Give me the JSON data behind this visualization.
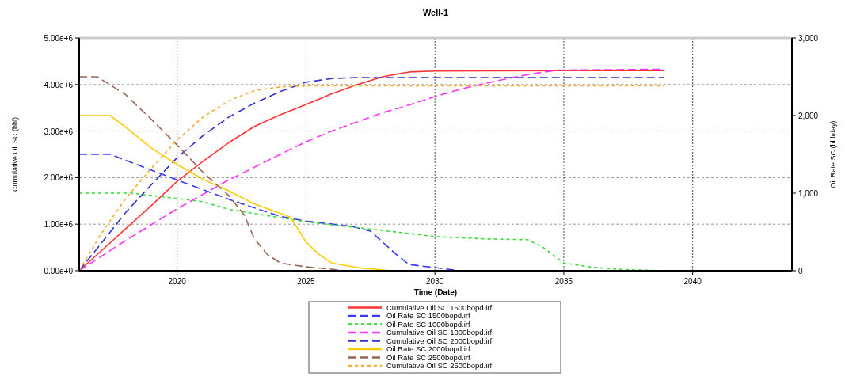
{
  "chart_data": {
    "type": "line",
    "title": "Well-1",
    "xlabel": "Time (Date)",
    "ylabel": "Cumulative Oil SC (bbl)",
    "y2label": "Oil Rate SC (bbl/day)",
    "xlim": [
      2016.2,
      2043.85
    ],
    "xticks": [
      2020,
      2025,
      2030,
      2035,
      2040
    ],
    "ylim": [
      0,
      5000000
    ],
    "yticks": [
      {
        "value": 0,
        "label": "0.00e+0"
      },
      {
        "value": 1000000,
        "label": "1.00e+6"
      },
      {
        "value": 2000000,
        "label": "2.00e+6"
      },
      {
        "value": 3000000,
        "label": "3.00e+6"
      },
      {
        "value": 4000000,
        "label": "4.00e+6"
      },
      {
        "value": 5000000,
        "label": "5.00e+6"
      }
    ],
    "y2lim": [
      0,
      3000
    ],
    "y2ticks": [
      0,
      {
        "value": 1000,
        "label": "1,000"
      },
      {
        "value": 2000,
        "label": "2,000"
      },
      {
        "value": 3000,
        "label": "3,000"
      }
    ],
    "grid": true,
    "legend": "bottom",
    "marker": "none",
    "series": [
      {
        "name": "Cumulative Oil SC 1500bopd.irf",
        "color": "#ff3333",
        "line_style": "solid",
        "x": [
          2016.2,
          2017,
          2018,
          2019,
          2020,
          2021,
          2022,
          2023,
          2024,
          2025,
          2026,
          2027,
          2028,
          2029,
          2030,
          2035,
          2038.9
        ],
        "values": [
          0,
          400000,
          900000,
          1400000,
          1920000,
          2350000,
          2750000,
          3100000,
          3350000,
          3570000,
          3800000,
          4000000,
          4170000,
          4270000,
          4290000,
          4300000,
          4300000
        ]
      },
      {
        "name": "Oil Rate SC 1500bopd.irf",
        "color": "#3a3aff",
        "line_style": "dashed",
        "axis": "y2",
        "x": [
          2016.2,
          2017.4,
          2020,
          2022,
          2024,
          2025,
          2026.8,
          2027.5,
          2028.5,
          2029,
          2030,
          2031
        ],
        "values": [
          1500,
          1500,
          1170,
          920,
          700,
          640,
          570,
          510,
          210,
          80,
          40,
          0
        ]
      },
      {
        "name": "Oil Rate SC 1000bopd.irf",
        "color": "#33dd33",
        "line_style": "dotted",
        "axis": "y2",
        "x": [
          2016.2,
          2018.2,
          2020,
          2021,
          2022,
          2025,
          2029,
          2030,
          2032,
          2033.6,
          2034.2,
          2035,
          2036,
          2037,
          2038.9
        ],
        "values": [
          1000,
          1000,
          930,
          890,
          790,
          630,
          480,
          440,
          410,
          400,
          300,
          100,
          50,
          20,
          0
        ]
      },
      {
        "name": "Cumulative Oil SC 1000bopd.irf",
        "color": "#ff33ff",
        "line_style": "dashed",
        "x": [
          2016.2,
          2018,
          2020,
          2022,
          2024,
          2025,
          2026,
          2027,
          2028,
          2029,
          2030,
          2031,
          2032,
          2033,
          2034,
          2034.8,
          2038.9
        ],
        "values": [
          0,
          650000,
          1330000,
          1950000,
          2500000,
          2770000,
          3000000,
          3200000,
          3400000,
          3560000,
          3740000,
          3900000,
          4030000,
          4150000,
          4250000,
          4310000,
          4330000
        ]
      },
      {
        "name": "Cumulative Oil SC 2000bopd.irf",
        "color": "#3333cc",
        "line_style": "dashed",
        "x": [
          2016.2,
          2017,
          2018,
          2019,
          2020,
          2021,
          2022,
          2023,
          2024,
          2025,
          2026,
          2027,
          2038.9
        ],
        "values": [
          0,
          550000,
          1250000,
          1850000,
          2430000,
          2900000,
          3300000,
          3600000,
          3850000,
          4050000,
          4130000,
          4150000,
          4150000
        ]
      },
      {
        "name": "Oil Rate SC 2000bopd.irf",
        "color": "#ffcc00",
        "line_style": "solid",
        "axis": "y2",
        "x": [
          2016.2,
          2017.4,
          2018,
          2019,
          2020,
          2021,
          2022,
          2023,
          2024,
          2024.4,
          2025,
          2025.5,
          2026,
          2027,
          2028,
          2028.3
        ],
        "values": [
          2000,
          2000,
          1850,
          1580,
          1370,
          1180,
          1030,
          860,
          740,
          690,
          370,
          210,
          100,
          40,
          10,
          0
        ]
      },
      {
        "name": "Oil Rate SC 2500bopd.irf",
        "color": "#996655",
        "line_style": "dashed",
        "axis": "y2",
        "x": [
          2016.2,
          2016.9,
          2018,
          2019,
          2020,
          2021,
          2022,
          2022.6,
          2023,
          2023.5,
          2024,
          2025,
          2026,
          2026.5
        ],
        "values": [
          2500,
          2500,
          2270,
          1950,
          1620,
          1270,
          970,
          720,
          410,
          210,
          100,
          50,
          20,
          0
        ]
      },
      {
        "name": "Cumulative Oil SC 2500bopd.irf",
        "color": "#ffaa33",
        "line_style": "dotted",
        "x": [
          2016.2,
          2017,
          2018,
          2019,
          2020,
          2021,
          2022,
          2023,
          2024,
          2025,
          2038.9
        ],
        "values": [
          0,
          750000,
          1550000,
          2200000,
          2810000,
          3300000,
          3650000,
          3870000,
          3950000,
          3970000,
          3970000
        ]
      }
    ]
  }
}
